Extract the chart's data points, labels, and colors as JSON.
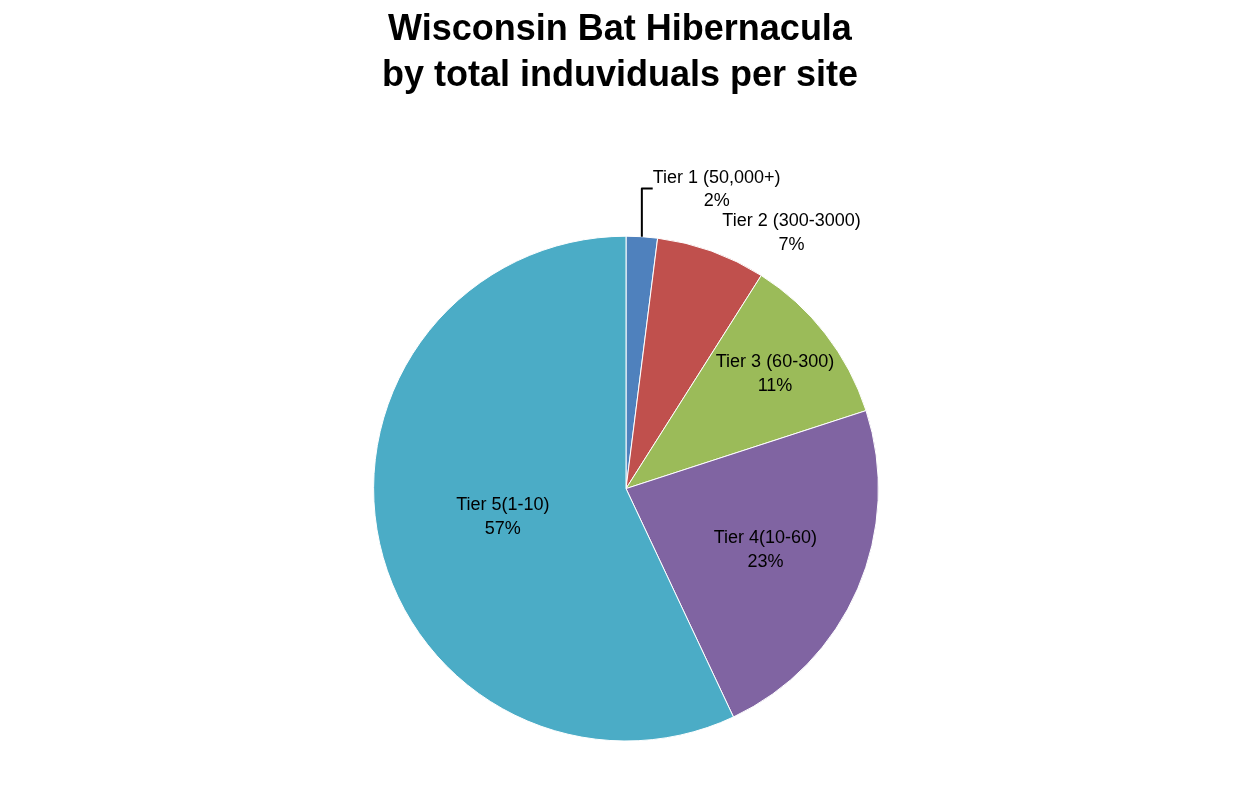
{
  "chart_data": {
    "type": "pie",
    "title": "Wisconsin Bat Hibernacula\nby total induviduals per site",
    "categories": [
      "Tier 1 (50,000+)",
      "Tier 2 (300-3000)",
      "Tier 3 (60-300)",
      "Tier 4(10-60)",
      "Tier 5(1-10)"
    ],
    "values": [
      2,
      7,
      11,
      23,
      57
    ],
    "value_labels": [
      "2%",
      "7%",
      "11%",
      "23%",
      "57%"
    ],
    "colors": [
      "#4f81bd",
      "#c0504d",
      "#9bbb59",
      "#8064a2",
      "#4bacc6"
    ],
    "legend": false
  }
}
